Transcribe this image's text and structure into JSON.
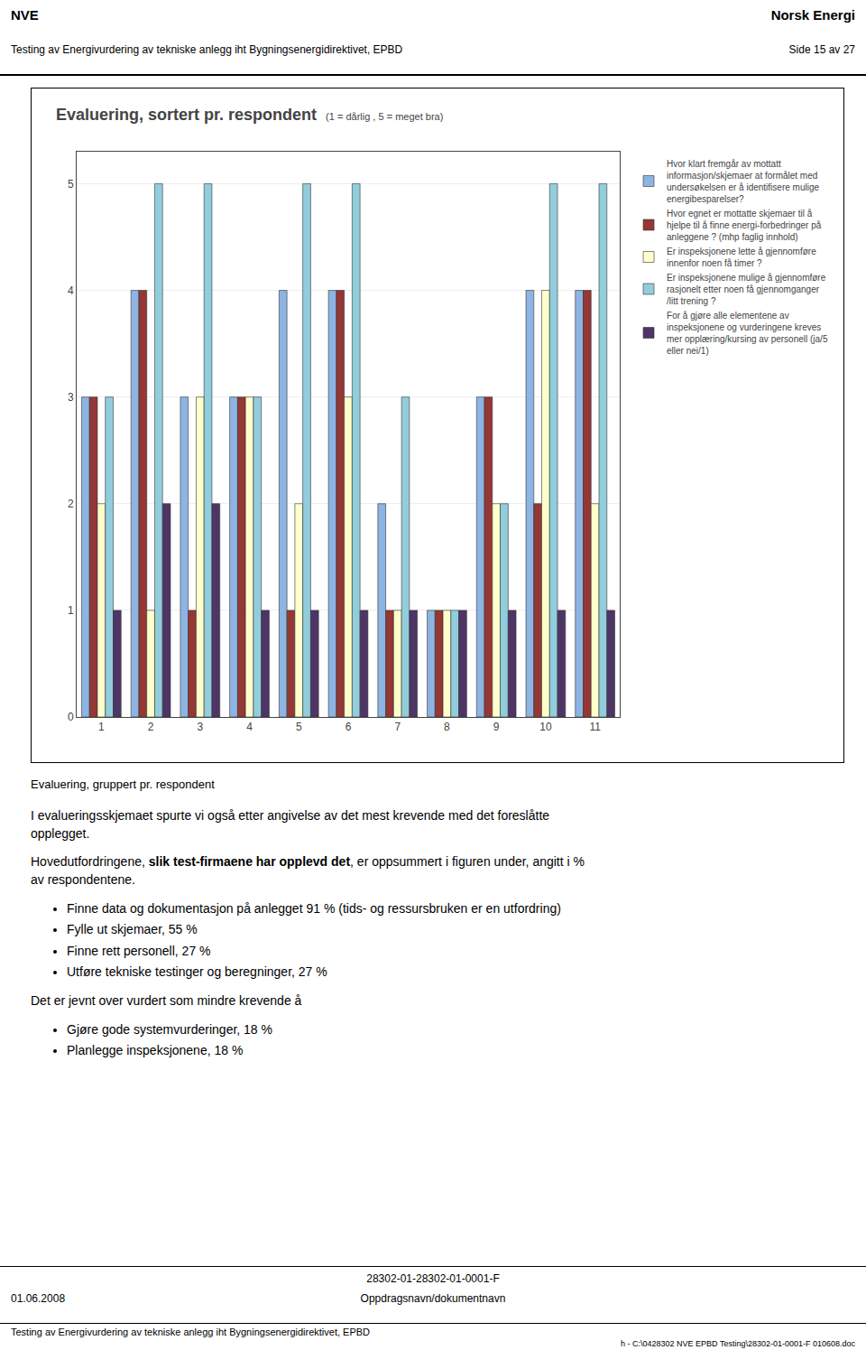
{
  "chart_data": {
    "type": "bar",
    "title": "Evaluering, sortert pr. respondent",
    "subtitle": "(1 = dårlig , 5 = meget bra)",
    "categories": [
      "1",
      "2",
      "3",
      "4",
      "5",
      "6",
      "7",
      "8",
      "9",
      "10",
      "11"
    ],
    "series": [
      {
        "name": "Hvor klart fremgår av mottatt\ninformasjon/skjemaer at formålet med\nundersøkelsen er å identifisere mulige\nenergibesparelser?",
        "color": "#8DB4E2",
        "values": [
          3,
          4,
          3,
          3,
          4,
          4,
          2,
          1,
          3,
          4,
          4
        ]
      },
      {
        "name": "Hvor egnet er mottatte skjemaer til å\nhjelpe til å finne energi-forbedringer på\nanleggene ? (mhp faglig innhold)",
        "color": "#953735",
        "values": [
          3,
          4,
          1,
          3,
          1,
          4,
          1,
          1,
          3,
          2,
          4
        ]
      },
      {
        "name": "Er inspeksjonene lette å gjennomføre\ninnenfor noen få timer ?",
        "color": "#FFFFCC",
        "values": [
          2,
          1,
          3,
          3,
          2,
          3,
          1,
          1,
          2,
          4,
          2
        ]
      },
      {
        "name": "Er inspeksjonene mulige å gjennomføre\nrasjonelt etter noen få gjennomganger\n/litt trening ?",
        "color": "#92CDDC",
        "values": [
          3,
          5,
          5,
          3,
          5,
          5,
          3,
          1,
          2,
          5,
          5
        ]
      },
      {
        "name": "For å gjøre alle elementene av\ninspeksjonene og vurderingene kreves\nmer opplæring/kursing av personell (ja/5\neller nei/1)",
        "color": "#4F3566",
        "values": [
          1,
          2,
          2,
          1,
          1,
          1,
          1,
          1,
          1,
          1,
          1
        ]
      }
    ],
    "ylim": [
      0,
      5.3
    ],
    "yticks": [
      0,
      1,
      2,
      3,
      4,
      5
    ],
    "grid": true,
    "legend": "right"
  },
  "page_text": {
    "header_left1": "NVE",
    "header_right1": "Norsk Energi",
    "header_left2": "Testing av Energivurdering av tekniske anlegg iht Bygningsenergidirektivet, EPBD",
    "header_right2": "Side 15 av 27",
    "text_caption": "Evaluering, gruppert pr. respondent",
    "text_para1": "I evalueringsskjemaet spurte vi også etter angivelse av det mest krevende med det foreslåtte\nopplegget.",
    "text_intro_normal": "Hovedutfordringene, ",
    "text_intro_bold": "slik test-firmaene har opplevd det",
    "text_intro_rest": ", er oppsummert i figuren under, angitt i %\nav respondentene.",
    "bullets1": [
      "Finne data og dokumentasjon på anlegget 91 % (tids- og ressursbruken er en utfordring)",
      "Fylle ut skjemaer, 55 %",
      "Finne rett personell, 27 %",
      "Utføre tekniske testinger og beregninger, 27 %"
    ],
    "text_para3": "Det er jevnt over vurdert som mindre krevende å",
    "bullets2": [
      "Gjøre gode systemvurderinger, 18 %",
      "Planlegge inspeksjonene, 18 %"
    ],
    "footer_center1": "28302-01-28302-01-0001-F",
    "footer_left": "01.06.2008",
    "footer_center2": "Oppdragsnavn/dokumentnavn",
    "footer_line": "Testing av Energivurdering av tekniske anlegg iht Bygningsenergidirektivet, EPBD",
    "footer_right": "h - C:\\0428302 NVE EPBD Testing\\28302-01-0001-F 010608.doc"
  }
}
